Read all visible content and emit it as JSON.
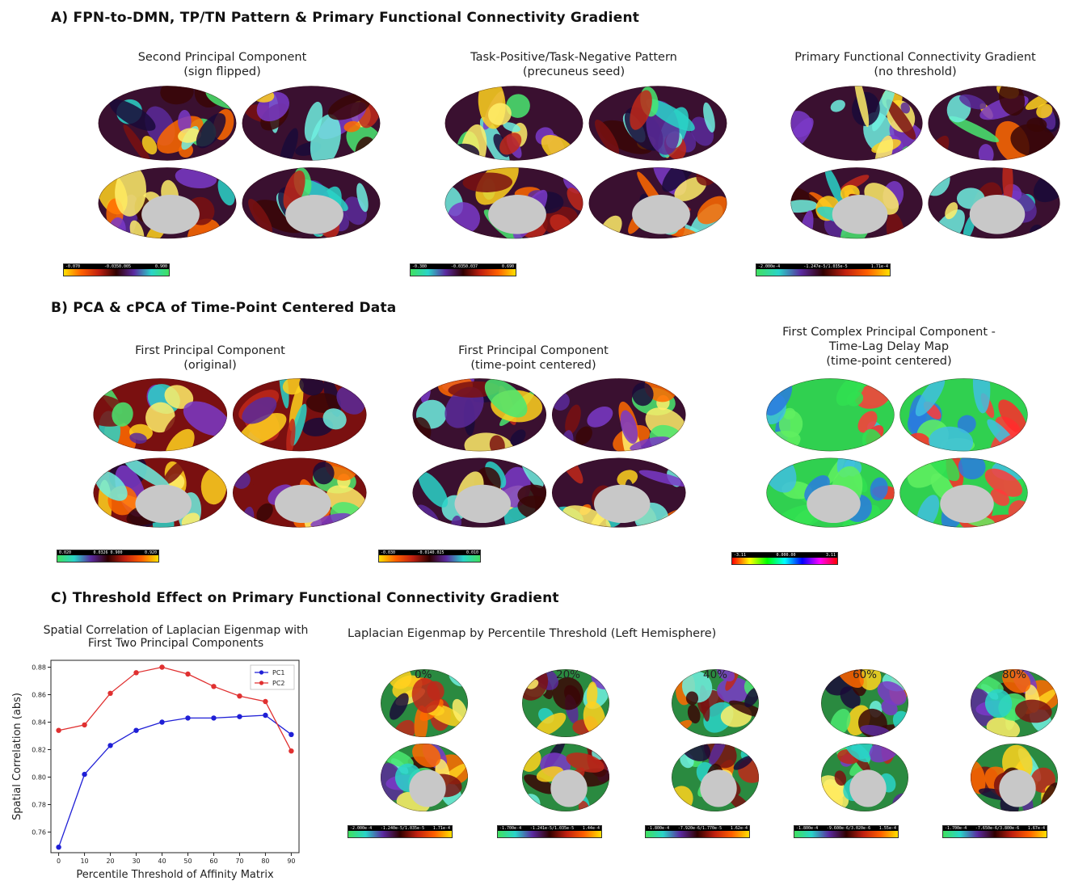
{
  "sections": {
    "a": "A) FPN-to-DMN, TP/TN Pattern & Primary Functional Connectivity Gradient",
    "b": "B) PCA & cPCA of Time-Point Centered Data",
    "c": "C) Threshold Effect on Primary Functional Connectivity Gradient"
  },
  "panels": {
    "a1": [
      "Second Principal Component",
      "(sign flipped)"
    ],
    "a2": [
      "Task-Positive/Task-Negative Pattern",
      "(precuneus seed)"
    ],
    "a3": [
      "Primary Functional Connectivity Gradient",
      "(no threshold)"
    ],
    "b1": [
      "First Principal Component",
      "(original)"
    ],
    "b2": [
      "First Principal Component",
      "(time-point centered)"
    ],
    "b3": [
      "First Complex Principal Component -",
      "Time-Lag Delay Map",
      "(time-point centered)"
    ]
  },
  "colorbars": {
    "a1": [
      "-0.070",
      "-0.0350.005",
      "0.900"
    ],
    "a2": [
      "-0.380",
      "-0.0350.037",
      "0.690"
    ],
    "a3": [
      "-2.000e-4",
      "-1.247e-5/1.035e-5",
      "1.71e-4"
    ],
    "b1": [
      "0.020",
      "0.0326 0.900",
      "0.920"
    ],
    "b2": [
      "-0.030",
      "-0.0140.025",
      "0.010"
    ],
    "b3": [
      "-3.11",
      "0.000.00",
      "3.11"
    ],
    "c1": [
      "-2.000e-4",
      "-1.240e-5/1.035e-5",
      "1.71e-4"
    ],
    "c2": [
      "-1.700e-4",
      "-1.241e-5/1.035e-5",
      "1.44e-4"
    ],
    "c3": [
      "-1.800e-4",
      "-7.920e-6/1.770e-5",
      "1.62e-4"
    ],
    "c4": [
      "-1.800e-4",
      "-9.600e-6/3.020e-6",
      "1.55e-4"
    ],
    "c5": [
      "-1.700e-4",
      "-7.650e-6/3.800e-6",
      "1.67e-4"
    ]
  },
  "laplacian_title": "Laplacian Eigenmap by Percentile Threshold (Left Hemisphere)",
  "percentiles": [
    "0%",
    "20%",
    "40%",
    "60%",
    "80%"
  ],
  "colors": {
    "pc1": "#1f1fd6",
    "pc2": "#e03030"
  },
  "chart_data": {
    "type": "line",
    "title": "Spatial Correlation of Laplacian Eigenmap with First Two Principal Components",
    "title_lines": [
      "Spatial Correlation of Laplacian Eigenmap with",
      "First Two Principal Components"
    ],
    "xlabel": "Percentile Threshold of Affinity Matrix",
    "ylabel": "Spatial Correlation (abs)",
    "x": [
      0,
      10,
      20,
      30,
      40,
      50,
      60,
      70,
      80,
      90
    ],
    "xticks": [
      "0",
      "10",
      "20",
      "30",
      "40",
      "50",
      "60",
      "70",
      "80",
      "90"
    ],
    "yticks": [
      "0.76",
      "0.78",
      "0.80",
      "0.82",
      "0.84",
      "0.86",
      "0.88"
    ],
    "xlim": [
      -3,
      93
    ],
    "ylim": [
      0.745,
      0.885
    ],
    "legend": "top-right",
    "series": [
      {
        "name": "PC1",
        "values": [
          0.749,
          0.802,
          0.823,
          0.834,
          0.84,
          0.843,
          0.843,
          0.844,
          0.845,
          0.831
        ]
      },
      {
        "name": "PC2",
        "values": [
          0.834,
          0.838,
          0.861,
          0.876,
          0.88,
          0.875,
          0.866,
          0.859,
          0.855,
          0.819
        ]
      }
    ]
  }
}
